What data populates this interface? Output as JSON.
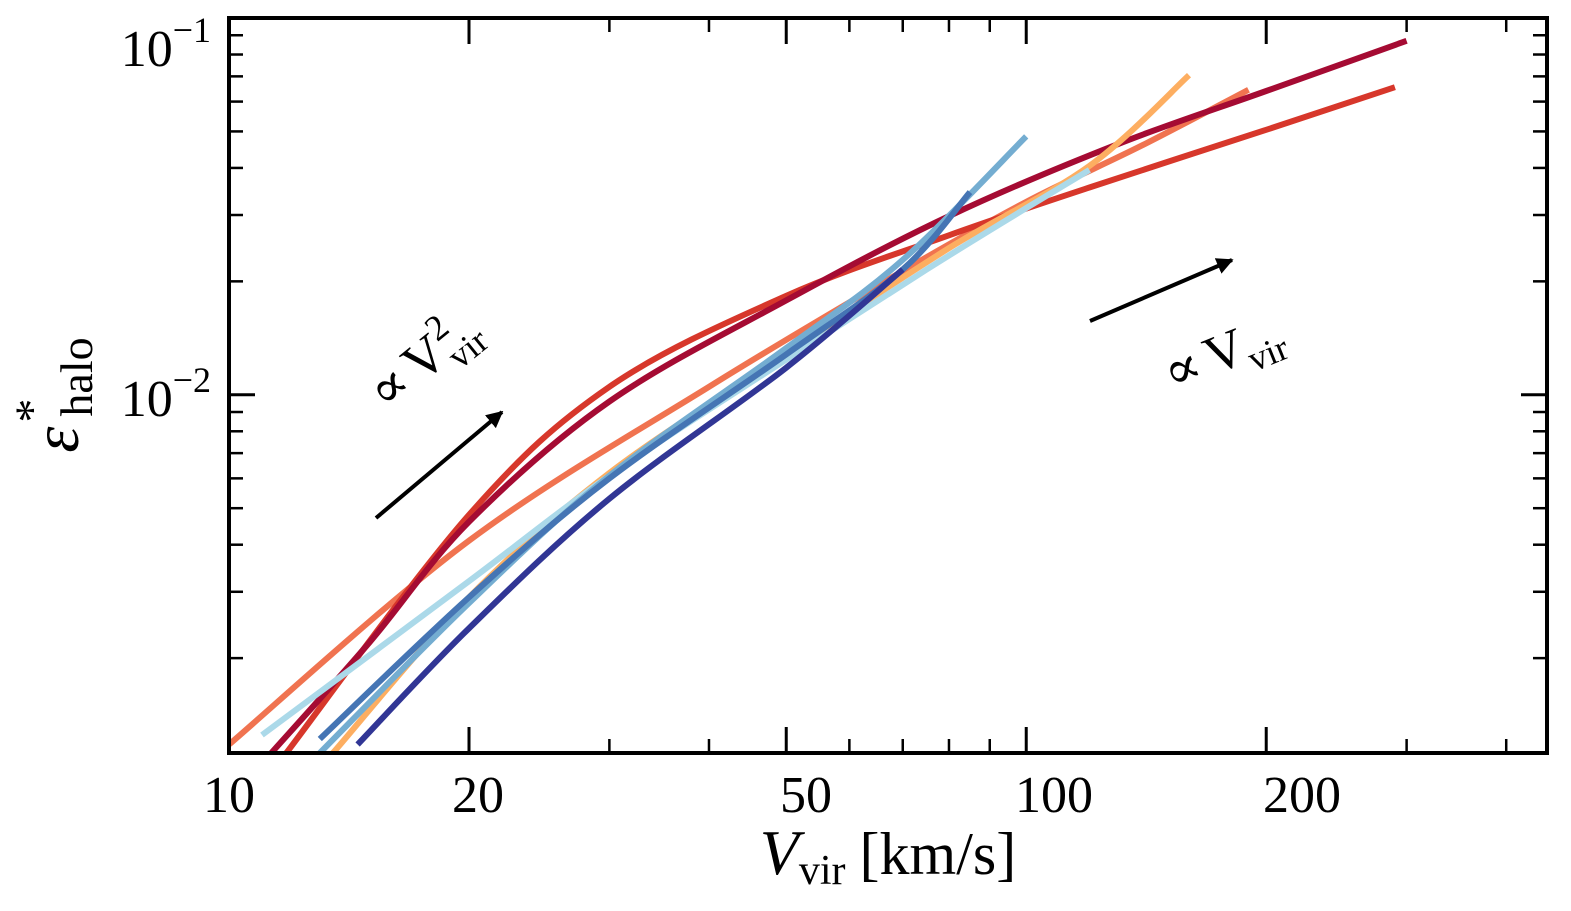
{
  "chart_data": {
    "type": "line",
    "xscale": "log",
    "yscale": "log",
    "xlim": [
      10,
      450
    ],
    "ylim": [
      0.00112,
      0.1
    ],
    "xlabel": {
      "symbol": "V",
      "sub": "vir",
      "unit": "[km/s]"
    },
    "ylabel": {
      "symbol": "ε",
      "sup": "*",
      "sub": "halo"
    },
    "x_ticks": [
      {
        "value": 10,
        "label": "10"
      },
      {
        "value": 20,
        "label": "20"
      },
      {
        "value": 50,
        "label": "50"
      },
      {
        "value": 100,
        "label": "100"
      },
      {
        "value": 200,
        "label": "200"
      }
    ],
    "x_minor_ticks": [
      30,
      40,
      60,
      70,
      80,
      90,
      300,
      400
    ],
    "y_ticks": [
      {
        "value": 0.1,
        "base": "10",
        "exp": "−1"
      },
      {
        "value": 0.01,
        "base": "10",
        "exp": "−2"
      }
    ],
    "y_minor_ticks": [
      0.002,
      0.003,
      0.004,
      0.005,
      0.006,
      0.007,
      0.008,
      0.009,
      0.02,
      0.03,
      0.04,
      0.05,
      0.06,
      0.07,
      0.08,
      0.09
    ],
    "series": [
      {
        "color": "#f07350",
        "points": [
          [
            10,
            0.00118
          ],
          [
            20,
            0.0041
          ],
          [
            40,
            0.0105
          ],
          [
            70,
            0.0213
          ],
          [
            100,
            0.0325
          ],
          [
            140,
            0.046
          ],
          [
            190,
            0.0645
          ]
        ]
      },
      {
        "color": "#d7372b",
        "points": [
          [
            11.8,
            0.00112
          ],
          [
            20,
            0.0048
          ],
          [
            30,
            0.0105
          ],
          [
            50,
            0.0183
          ],
          [
            80,
            0.0265
          ],
          [
            120,
            0.0355
          ],
          [
            200,
            0.0505
          ],
          [
            290,
            0.0655
          ]
        ]
      },
      {
        "color": "#a50b33",
        "points": [
          [
            11.3,
            0.00112
          ],
          [
            15,
            0.0022
          ],
          [
            20,
            0.0046
          ],
          [
            30,
            0.0096
          ],
          [
            50,
            0.0178
          ],
          [
            80,
            0.0298
          ],
          [
            130,
            0.0462
          ],
          [
            200,
            0.064
          ],
          [
            300,
            0.087
          ]
        ]
      },
      {
        "color": "#fdae61",
        "points": [
          [
            13.5,
            0.00112
          ],
          [
            20,
            0.0029
          ],
          [
            30,
            0.0062
          ],
          [
            50,
            0.0128
          ],
          [
            80,
            0.0245
          ],
          [
            120,
            0.0405
          ],
          [
            160,
            0.0705
          ]
        ]
      },
      {
        "color": "#abd9e9",
        "points": [
          [
            11,
            0.00125
          ],
          [
            20,
            0.0032
          ],
          [
            30,
            0.0061
          ],
          [
            50,
            0.0124
          ],
          [
            75,
            0.0215
          ],
          [
            100,
            0.0313
          ],
          [
            120,
            0.0395
          ]
        ]
      },
      {
        "color": "#74add1",
        "points": [
          [
            13,
            0.00112
          ],
          [
            20,
            0.0028
          ],
          [
            30,
            0.0061
          ],
          [
            50,
            0.0133
          ],
          [
            70,
            0.0228
          ],
          [
            100,
            0.0485
          ]
        ]
      },
      {
        "color": "#4575b4",
        "points": [
          [
            13,
            0.00122
          ],
          [
            20,
            0.0029
          ],
          [
            30,
            0.006
          ],
          [
            50,
            0.0128
          ],
          [
            70,
            0.0215
          ],
          [
            85,
            0.0345
          ]
        ]
      },
      {
        "color": "#313695",
        "points": [
          [
            14.5,
            0.00118
          ],
          [
            20,
            0.0024
          ],
          [
            30,
            0.0053
          ],
          [
            50,
            0.0118
          ],
          [
            70,
            0.0215
          ]
        ]
      }
    ],
    "annotations": [
      {
        "text": "∝",
        "symbol": "V",
        "sup": "2",
        "sub": "vir",
        "position": "middle-left",
        "direction": "steep up"
      },
      {
        "text": "∝",
        "symbol": "V",
        "sub": "vir",
        "position": "middle-right",
        "direction": "shallow up"
      }
    ]
  }
}
